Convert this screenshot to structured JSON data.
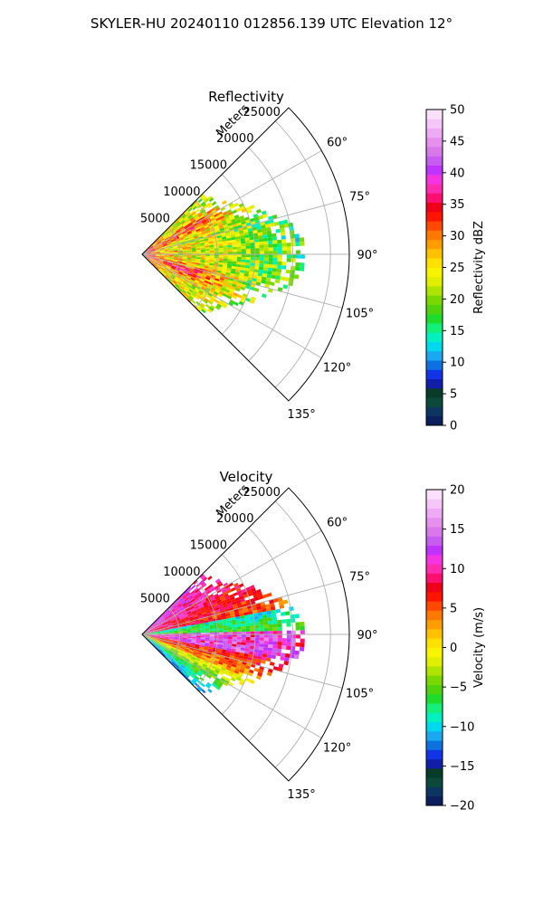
{
  "title": "SKYLER-HU  20240110  012856.139 UTC Elevation 12°",
  "chart_data": [
    {
      "type": "heatmap",
      "subtype": "polar-sector",
      "title": "Reflectivity",
      "range_label": "Meters",
      "range_ticks": [
        5000,
        10000,
        15000,
        20000,
        25000
      ],
      "range_tick_labels": [
        "5000",
        "10000",
        "15000",
        "20000",
        "25000"
      ],
      "range_max": 27500,
      "azimuth_range_deg": [
        45,
        135
      ],
      "azimuth_ticks_deg": [
        60,
        75,
        90,
        105,
        120,
        135
      ],
      "azimuth_tick_labels": [
        "60°",
        "75°",
        "90°",
        "105°",
        "120°",
        "135°"
      ],
      "grid": true,
      "colorbar": {
        "label": "Reflectivity dBZ",
        "min": 0,
        "max": 50,
        "ticks": [
          0,
          5,
          10,
          15,
          20,
          25,
          30,
          35,
          40,
          45,
          50
        ],
        "tick_labels": [
          "0",
          "5",
          "10",
          "15",
          "20",
          "25",
          "30",
          "35",
          "40",
          "45",
          "50"
        ],
        "colors": [
          "#0a1f5c",
          "#0d3560",
          "#0b4a3a",
          "#083c2a",
          "#101ea8",
          "#1234e6",
          "#0b72e0",
          "#1aa8f0",
          "#00d8ee",
          "#00f0c0",
          "#12f07a",
          "#1edc2c",
          "#50d20f",
          "#78d800",
          "#aee400",
          "#e0ee00",
          "#f8f400",
          "#ffe000",
          "#ffc000",
          "#ff9c00",
          "#ff7800",
          "#ff4800",
          "#ff1400",
          "#f00018",
          "#ff1070",
          "#ff2cb0",
          "#f434e0",
          "#c032ff",
          "#c85cf0",
          "#d878ea",
          "#e690ee",
          "#eeaaf4",
          "#f6c6f8",
          "#fae0fa"
        ]
      },
      "field": "reflectivity_dbz"
    },
    {
      "type": "heatmap",
      "subtype": "polar-sector",
      "title": "Velocity",
      "range_label": "Meters",
      "range_ticks": [
        5000,
        10000,
        15000,
        20000,
        25000
      ],
      "range_tick_labels": [
        "5000",
        "10000",
        "15000",
        "20000",
        "25000"
      ],
      "range_max": 27500,
      "azimuth_range_deg": [
        45,
        135
      ],
      "azimuth_ticks_deg": [
        60,
        75,
        90,
        105,
        120,
        135
      ],
      "azimuth_tick_labels": [
        "60°",
        "75°",
        "90°",
        "105°",
        "120°",
        "135°"
      ],
      "grid": true,
      "colorbar": {
        "label": "Velocity (m/s)",
        "min": -20,
        "max": 20,
        "ticks": [
          -20,
          -15,
          -10,
          -5,
          0,
          5,
          10,
          15,
          20
        ],
        "tick_labels": [
          "−20",
          "−15",
          "−10",
          "−5",
          "0",
          "5",
          "10",
          "15",
          "20"
        ],
        "colors": [
          "#0a1f5c",
          "#0d3560",
          "#0b4a3a",
          "#083c2a",
          "#101ea8",
          "#1234e6",
          "#0b72e0",
          "#1aa8f0",
          "#00d8ee",
          "#00f0c0",
          "#12f07a",
          "#1edc2c",
          "#50d20f",
          "#78d800",
          "#aee400",
          "#e0ee00",
          "#f8f400",
          "#ffe000",
          "#ffc000",
          "#ff9c00",
          "#ff7800",
          "#ff4800",
          "#ff1400",
          "#f00018",
          "#ff1070",
          "#ff2cb0",
          "#f434e0",
          "#c032ff",
          "#c85cf0",
          "#d878ea",
          "#e690ee",
          "#eeaaf4",
          "#f6c6f8",
          "#fae0fa"
        ]
      },
      "field": "radial_velocity_ms"
    }
  ]
}
